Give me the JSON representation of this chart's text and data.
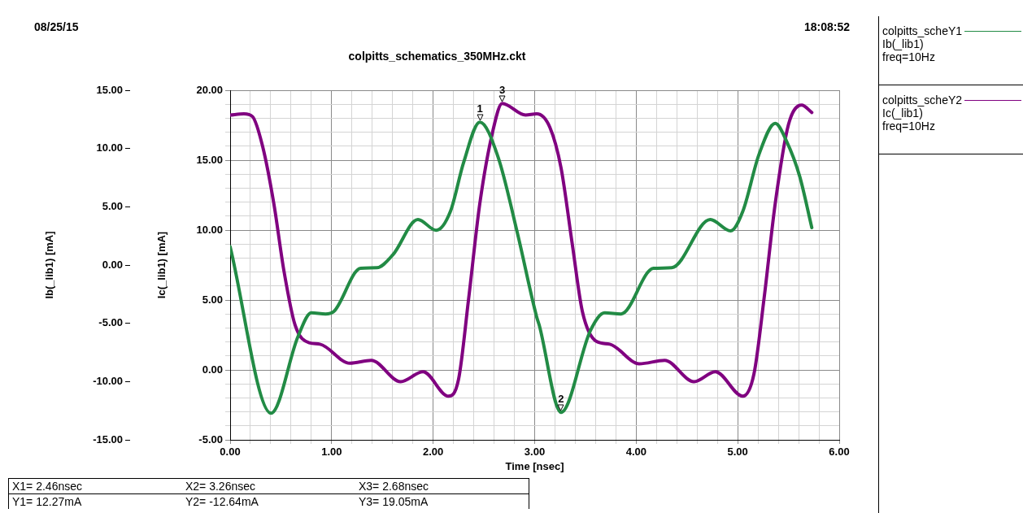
{
  "chart_data": {
    "type": "line",
    "title": "colpitts_schematics_350MHz.ckt",
    "xlabel": "Time [nsec]",
    "ylabel": "Ib(_lib1) [mA]",
    "y2label": "Ic(_lib1) [mA]",
    "xlim": [
      0,
      6
    ],
    "xticks": [
      {
        "value": 0,
        "label": "0.00"
      },
      {
        "value": 0.2,
        "label": null
      },
      {
        "value": 0.4,
        "label": null
      },
      {
        "value": 0.6,
        "label": null
      },
      {
        "value": 0.8,
        "label": null
      },
      {
        "value": 1,
        "label": "1.00"
      },
      {
        "value": 1.2,
        "label": null
      },
      {
        "value": 1.4,
        "label": null
      },
      {
        "value": 1.6,
        "label": null
      },
      {
        "value": 1.8,
        "label": null
      },
      {
        "value": 2,
        "label": "2.00"
      },
      {
        "value": 2.2,
        "label": null
      },
      {
        "value": 2.4,
        "label": null
      },
      {
        "value": 2.6,
        "label": null
      },
      {
        "value": 2.8,
        "label": null
      },
      {
        "value": 3,
        "label": "3.00"
      },
      {
        "value": 3.2,
        "label": null
      },
      {
        "value": 3.4,
        "label": null
      },
      {
        "value": 3.6,
        "label": null
      },
      {
        "value": 3.8,
        "label": null
      },
      {
        "value": 4,
        "label": "4.00"
      },
      {
        "value": 4.2,
        "label": null
      },
      {
        "value": 4.4,
        "label": null
      },
      {
        "value": 4.6,
        "label": null
      },
      {
        "value": 4.8,
        "label": null
      },
      {
        "value": 5,
        "label": "5.00"
      },
      {
        "value": 5.2,
        "label": null
      },
      {
        "value": 5.4,
        "label": null
      },
      {
        "value": 5.6,
        "label": null
      },
      {
        "value": 5.8,
        "label": null
      },
      {
        "value": 6,
        "label": "6.00"
      }
    ],
    "ylim": [
      -15,
      15
    ],
    "yticks": [
      {
        "value": -15,
        "label": "-15.00"
      },
      {
        "value": -10,
        "label": "-10.00"
      },
      {
        "value": -5,
        "label": "-5.00"
      },
      {
        "value": 0,
        "label": "0.00"
      },
      {
        "value": 5,
        "label": "5.00"
      },
      {
        "value": 10,
        "label": "10.00"
      },
      {
        "value": 15,
        "label": "15.00"
      }
    ],
    "y2lim": [
      -5,
      20
    ],
    "y2ticks": [
      {
        "value": -5,
        "label": "-5.00"
      },
      {
        "value": -4,
        "label": null
      },
      {
        "value": -3,
        "label": null
      },
      {
        "value": -2,
        "label": null
      },
      {
        "value": -1,
        "label": null
      },
      {
        "value": 0,
        "label": "0.00"
      },
      {
        "value": 1,
        "label": null
      },
      {
        "value": 2,
        "label": null
      },
      {
        "value": 3,
        "label": null
      },
      {
        "value": 4,
        "label": null
      },
      {
        "value": 5,
        "label": "5.00"
      },
      {
        "value": 6,
        "label": null
      },
      {
        "value": 7,
        "label": null
      },
      {
        "value": 8,
        "label": null
      },
      {
        "value": 9,
        "label": null
      },
      {
        "value": 10,
        "label": "10.00"
      },
      {
        "value": 11,
        "label": null
      },
      {
        "value": 12,
        "label": null
      },
      {
        "value": 13,
        "label": null
      },
      {
        "value": 14,
        "label": null
      },
      {
        "value": 15,
        "label": "15.00"
      },
      {
        "value": 16,
        "label": null
      },
      {
        "value": 17,
        "label": null
      },
      {
        "value": 18,
        "label": null
      },
      {
        "value": 19,
        "label": null
      },
      {
        "value": 20,
        "label": "20.00"
      }
    ],
    "grid": true,
    "legend": "right",
    "line_style": "solid",
    "series": [
      {
        "name": "colpitts_scheY1 Ib(_lib1) freq=10Hz",
        "color": "#228b45",
        "x": [
          0,
          0.403,
          0.67,
          0.8,
          0.94,
          1.02,
          1.285,
          1.445,
          1.605,
          1.85,
          2.03,
          2.17,
          2.3,
          2.46,
          2.64,
          2.83,
          3.02,
          3.045,
          3.26,
          3.55,
          3.69,
          3.85,
          4.17,
          4.35,
          4.73,
          4.93,
          5.05,
          5.21,
          5.37,
          5.48,
          5.61,
          5.73
        ],
        "values": [
          1.58,
          -12.72,
          -6.1,
          -4.1,
          -4.2,
          -4.0,
          -0.28,
          -0.23,
          0.9,
          3.91,
          2.98,
          4.6,
          8.8,
          12.27,
          9.26,
          2.74,
          -4.46,
          -5.16,
          -12.64,
          -5.6,
          -4.1,
          -4.2,
          -0.28,
          -0.23,
          3.91,
          2.93,
          4.6,
          9.5,
          12.16,
          10.65,
          7.63,
          3.21
        ]
      },
      {
        "name": "colpitts_scheY2 Ic(_lib1) freq=10Hz",
        "color": "#800080",
        "axis": "y2",
        "x": [
          0,
          0.136,
          0.22,
          0.32,
          0.43,
          0.53,
          0.64,
          0.78,
          0.885,
          1.18,
          1.39,
          1.68,
          1.9,
          2.15,
          2.25,
          2.35,
          2.46,
          2.59,
          2.68,
          2.91,
          3.02,
          3.15,
          3.26,
          3.37,
          3.47,
          3.61,
          3.74,
          4.03,
          4.28,
          4.57,
          4.78,
          5.05,
          5.16,
          5.26,
          5.37,
          5.5,
          5.63,
          5.73
        ],
        "values": [
          18.22,
          18.31,
          18.12,
          15.99,
          11.92,
          7.08,
          3.2,
          1.94,
          1.84,
          0.48,
          0.68,
          -0.84,
          -0.13,
          -1.88,
          -0.68,
          5.13,
          11.92,
          17.15,
          19.05,
          18.22,
          18.31,
          17.34,
          14.44,
          9.01,
          4.17,
          2.03,
          1.84,
          0.44,
          0.68,
          -0.84,
          -0.13,
          -1.88,
          -0.29,
          5.13,
          11.92,
          17.54,
          18.94,
          18.41
        ]
      }
    ],
    "annotations": [
      "08/25/15",
      "18:08:52",
      "X1= 2.46nsec",
      "X2= 3.26nsec",
      "X3= 2.68nsec",
      "Y1= 12.27mA",
      "Y2= -12.64mA",
      "Y3= 19.05mA",
      {
        "text": "1",
        "x": 2.46,
        "y": 12.27
      },
      {
        "text": "2",
        "x": 3.26,
        "y": -12.64
      },
      {
        "text": "3",
        "x": 2.68,
        "y": 13.86
      }
    ]
  }
}
